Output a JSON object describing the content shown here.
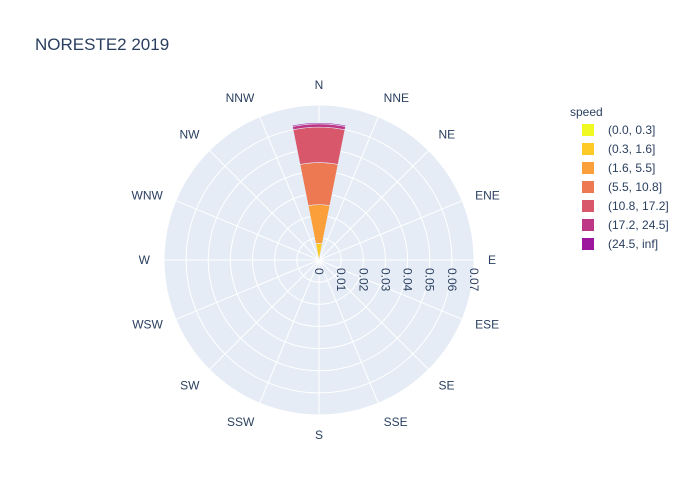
{
  "chart_data": {
    "type": "barpolar",
    "title": "NORESTE2 2019",
    "directions": [
      "N",
      "NNE",
      "NE",
      "ENE",
      "E",
      "ESE",
      "SE",
      "SSE",
      "S",
      "SSW",
      "SW",
      "WSW",
      "W",
      "WNW",
      "NW",
      "NNW"
    ],
    "radial_ticks": [
      "0",
      "0.01",
      "0.02",
      "0.03",
      "0.04",
      "0.05",
      "0.06",
      "0.07"
    ],
    "radial_tick_values": [
      0,
      0.01,
      0.02,
      0.03,
      0.04,
      0.05,
      0.06,
      0.07
    ],
    "rlim": [
      0,
      0.07
    ],
    "legend_title": "speed",
    "series": [
      {
        "name": "(0.0, 0.3]",
        "color": "#f0f921",
        "values": [
          0.0,
          0,
          0,
          0,
          0,
          0,
          0,
          0,
          0,
          0,
          0,
          0,
          0,
          0,
          0,
          0
        ]
      },
      {
        "name": "(0.3, 1.6]",
        "color": "#fdca26",
        "values": [
          0.0075,
          0,
          0,
          0,
          0,
          0,
          0,
          0,
          0,
          0,
          0,
          0,
          0,
          0,
          0,
          0
        ]
      },
      {
        "name": "(1.6, 5.5]",
        "color": "#fb9f3a",
        "values": [
          0.0175,
          0,
          0,
          0,
          0,
          0,
          0,
          0,
          0,
          0,
          0,
          0,
          0,
          0,
          0,
          0
        ]
      },
      {
        "name": "(5.5, 10.8]",
        "color": "#ed7953",
        "values": [
          0.019,
          0,
          0,
          0,
          0,
          0,
          0,
          0,
          0,
          0,
          0,
          0,
          0,
          0,
          0,
          0
        ]
      },
      {
        "name": "(10.8, 17.2]",
        "color": "#d8576b",
        "values": [
          0.016,
          0,
          0,
          0,
          0,
          0,
          0,
          0,
          0,
          0,
          0,
          0,
          0,
          0,
          0,
          0
        ]
      },
      {
        "name": "(17.2, 24.5]",
        "color": "#bd3786",
        "values": [
          0.0015,
          0,
          0,
          0,
          0,
          0,
          0,
          0,
          0,
          0,
          0,
          0,
          0,
          0,
          0,
          0
        ]
      },
      {
        "name": "(24.5, inf]",
        "color": "#9c179e",
        "values": [
          0.0005,
          0,
          0,
          0,
          0,
          0,
          0,
          0,
          0,
          0,
          0,
          0,
          0,
          0,
          0,
          0
        ]
      }
    ],
    "polar_background": "#e5ecf6",
    "grid_color": "#ffffff",
    "legend_position": "right"
  }
}
